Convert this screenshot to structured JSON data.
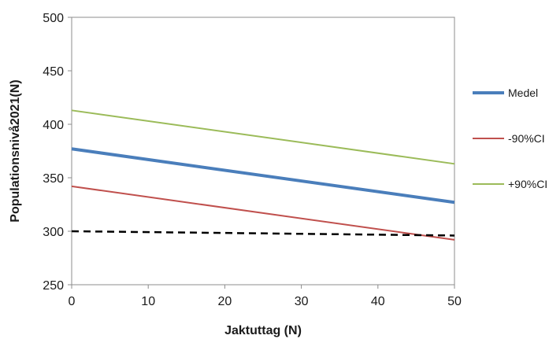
{
  "chart_data": {
    "type": "line",
    "xlabel": "Jaktuttag (N)",
    "ylabel": "Populationsnivå2021(N)",
    "xlim": [
      0,
      50
    ],
    "ylim": [
      250,
      500
    ],
    "x_ticks": [
      "0",
      "10",
      "20",
      "30",
      "40",
      "50"
    ],
    "y_ticks": [
      "250",
      "300",
      "350",
      "400",
      "450",
      "500"
    ],
    "grid": false,
    "legend_position": "right",
    "series": [
      {
        "name": "Medel",
        "x": [
          0,
          50
        ],
        "y": [
          377,
          327
        ],
        "color": "#4a7ebb",
        "width": 4
      },
      {
        "name": "-90%CI",
        "x": [
          0,
          50
        ],
        "y": [
          342,
          292
        ],
        "color": "#c0504d",
        "width": 2
      },
      {
        "name": "+90%CI",
        "x": [
          0,
          50
        ],
        "y": [
          413,
          363
        ],
        "color": "#9bbb59",
        "width": 2
      }
    ],
    "reference_line": {
      "x": [
        0,
        50
      ],
      "y": [
        300,
        296
      ],
      "color": "#000000",
      "style": "dashed"
    }
  }
}
